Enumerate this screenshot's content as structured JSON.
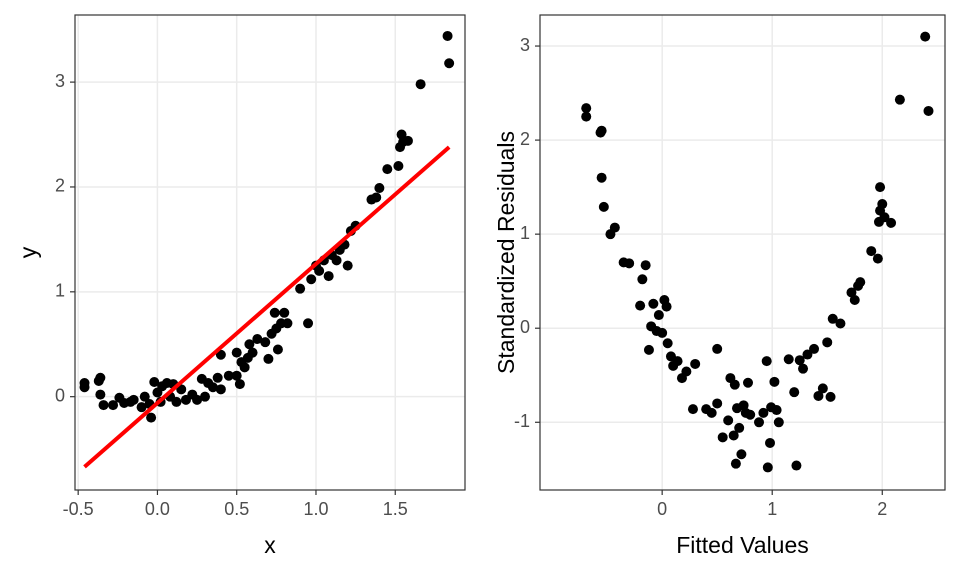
{
  "chart_data": [
    {
      "type": "scatter",
      "xlabel": "x",
      "ylabel": "y",
      "grid": true,
      "xlim": [
        -0.52,
        1.94
      ],
      "ylim": [
        -0.89,
        3.64
      ],
      "xticks": [
        -0.5,
        {
          "value": 0,
          "label": "0.0"
        },
        0.5,
        {
          "value": 1,
          "label": "1.0"
        },
        1.5
      ],
      "yticks": [
        0,
        1,
        2,
        3
      ],
      "series": [
        {
          "type": "scatter",
          "color": "#000000",
          "x": [
            -0.46,
            -0.46,
            -0.37,
            -0.36,
            -0.36,
            -0.34,
            -0.28,
            -0.24,
            -0.21,
            -0.17,
            -0.15,
            -0.1,
            -0.08,
            -0.05,
            -0.04,
            -0.02,
            0.0,
            0.02,
            0.03,
            0.06,
            0.08,
            0.1,
            0.12,
            0.15,
            0.18,
            0.22,
            0.25,
            0.28,
            0.3,
            0.32,
            0.35,
            0.38,
            0.4,
            0.4,
            0.45,
            0.5,
            0.5,
            0.52,
            0.53,
            0.55,
            0.57,
            0.58,
            0.6,
            0.63,
            0.68,
            0.7,
            0.72,
            0.74,
            0.75,
            0.76,
            0.78,
            0.8,
            0.82,
            0.9,
            0.95,
            0.97,
            1.0,
            1.02,
            1.05,
            1.08,
            1.1,
            1.13,
            1.15,
            1.18,
            1.2,
            1.22,
            1.25,
            1.35,
            1.38,
            1.4,
            1.45,
            1.52,
            1.53,
            1.54,
            1.55,
            1.58,
            1.66,
            1.83,
            1.84
          ],
          "values": [
            0.09,
            0.13,
            0.15,
            0.18,
            0.02,
            -0.08,
            -0.08,
            -0.01,
            -0.06,
            -0.05,
            -0.03,
            -0.1,
            0.0,
            -0.07,
            -0.2,
            0.14,
            0.04,
            -0.05,
            0.1,
            0.13,
            0.0,
            0.12,
            -0.05,
            0.07,
            -0.03,
            0.02,
            -0.03,
            0.17,
            0.0,
            0.13,
            0.09,
            0.18,
            0.4,
            0.07,
            0.2,
            0.42,
            0.2,
            0.12,
            0.33,
            0.28,
            0.37,
            0.5,
            0.42,
            0.55,
            0.52,
            0.36,
            0.6,
            0.8,
            0.65,
            0.45,
            0.7,
            0.8,
            0.7,
            1.03,
            0.7,
            1.12,
            1.25,
            1.2,
            1.3,
            1.15,
            1.35,
            1.3,
            1.4,
            1.45,
            1.25,
            1.58,
            1.63,
            1.88,
            1.9,
            1.99,
            2.17,
            2.2,
            2.38,
            2.5,
            2.43,
            2.44,
            2.98,
            3.44,
            3.18
          ]
        },
        {
          "type": "line",
          "color": "#ff0000",
          "x": [
            -0.46,
            1.84
          ],
          "values": [
            -0.67,
            2.38
          ]
        }
      ]
    },
    {
      "type": "scatter",
      "xlabel": "Fitted Values",
      "ylabel": "Standardized Residuals",
      "grid": true,
      "xlim": [
        -1.11,
        2.57
      ],
      "ylim": [
        -1.72,
        3.33
      ],
      "xticks": [
        0,
        1,
        2
      ],
      "yticks": [
        -1,
        0,
        1,
        2,
        3
      ],
      "series": [
        {
          "type": "scatter",
          "color": "#000000",
          "x": [
            -0.69,
            -0.69,
            -0.56,
            -0.55,
            -0.55,
            -0.53,
            -0.47,
            -0.43,
            -0.35,
            -0.3,
            -0.2,
            -0.18,
            -0.15,
            -0.12,
            -0.1,
            -0.08,
            -0.05,
            -0.03,
            0.0,
            0.02,
            0.04,
            0.05,
            0.08,
            0.1,
            0.14,
            0.18,
            0.22,
            0.28,
            0.3,
            0.4,
            0.45,
            0.5,
            0.5,
            0.55,
            0.6,
            0.62,
            0.65,
            0.66,
            0.67,
            0.68,
            0.7,
            0.72,
            0.74,
            0.76,
            0.78,
            0.8,
            0.88,
            0.92,
            0.95,
            0.96,
            0.98,
            0.99,
            1.02,
            1.04,
            1.06,
            1.15,
            1.2,
            1.22,
            1.25,
            1.28,
            1.32,
            1.38,
            1.42,
            1.46,
            1.5,
            1.53,
            1.55,
            1.62,
            1.72,
            1.75,
            1.78,
            1.8,
            1.9,
            1.96,
            1.97,
            1.98,
            1.98,
            2.0,
            2.02,
            2.08,
            2.16,
            2.39,
            2.42
          ],
          "values": [
            2.34,
            2.25,
            2.08,
            2.1,
            1.6,
            1.29,
            1.0,
            1.07,
            0.7,
            0.69,
            0.24,
            0.52,
            0.67,
            -0.23,
            0.02,
            0.26,
            -0.03,
            0.14,
            -0.05,
            0.3,
            0.23,
            -0.16,
            -0.3,
            -0.4,
            -0.35,
            -0.53,
            -0.46,
            -0.86,
            -0.38,
            -0.86,
            -0.9,
            -0.8,
            -0.22,
            -1.16,
            -0.98,
            -0.53,
            -1.14,
            -0.6,
            -1.44,
            -0.85,
            -1.06,
            -1.34,
            -0.82,
            -0.9,
            -0.58,
            -0.92,
            -1.0,
            -0.9,
            -0.35,
            -1.48,
            -1.22,
            -0.84,
            -0.57,
            -0.87,
            -1.0,
            -0.33,
            -0.68,
            -1.46,
            -0.34,
            -0.43,
            -0.28,
            -0.22,
            -0.72,
            -0.64,
            -0.15,
            -0.73,
            0.1,
            0.05,
            0.38,
            0.3,
            0.45,
            0.49,
            0.82,
            0.74,
            1.13,
            1.5,
            1.25,
            1.32,
            1.18,
            1.12,
            2.43,
            3.1,
            2.31
          ]
        }
      ]
    }
  ]
}
